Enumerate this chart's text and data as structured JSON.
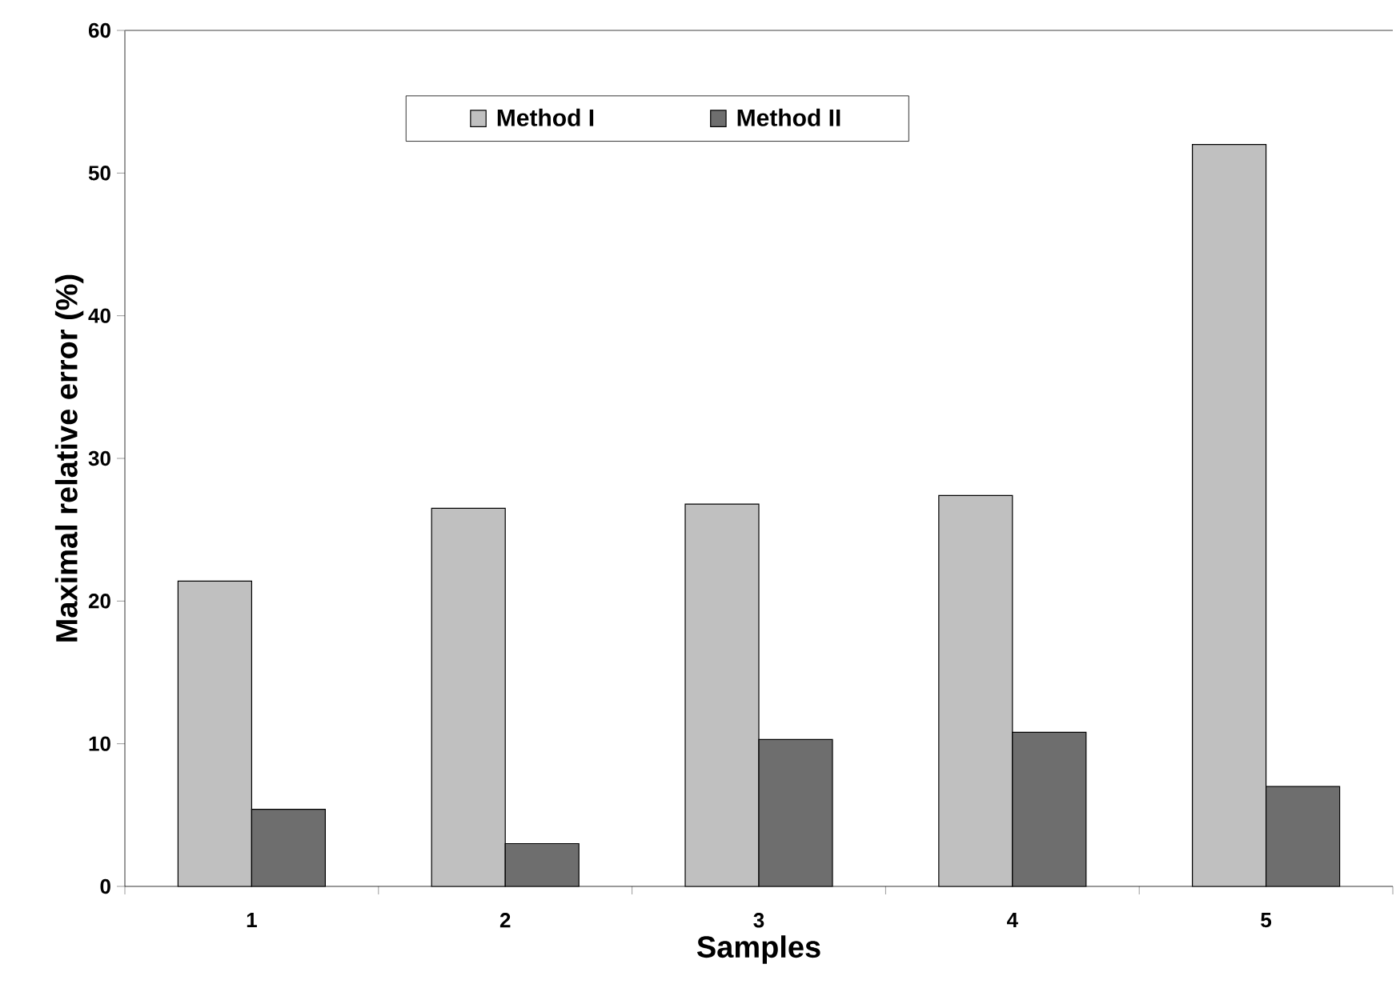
{
  "chart_data": {
    "type": "bar",
    "xlabel": "Samples",
    "ylabel": "Maximal  relative  error   (%)",
    "categories": [
      "1",
      "2",
      "3",
      "4",
      "5"
    ],
    "series": [
      {
        "name": "Method I",
        "color": "#c0c0c0",
        "values": [
          21.4,
          26.5,
          26.8,
          27.4,
          52.0
        ]
      },
      {
        "name": "Method II",
        "color": "#6e6e6e",
        "values": [
          5.4,
          3.0,
          10.3,
          10.8,
          7.0
        ]
      }
    ],
    "ylim": [
      0,
      60
    ],
    "yticks": [
      0,
      10,
      20,
      30,
      40,
      50,
      60
    ],
    "grid": false,
    "legend": "top"
  }
}
